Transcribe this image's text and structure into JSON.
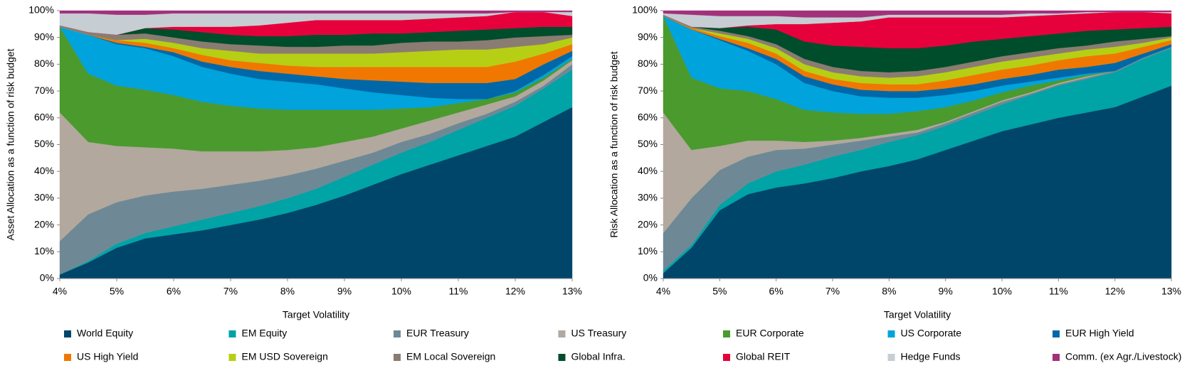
{
  "chart_data": [
    {
      "type": "area",
      "stacked": true,
      "y_label": "Asset Allocation as a function of risk budget",
      "x_label": "Target Volatility",
      "x": [
        4,
        4.5,
        5,
        5.5,
        6,
        6.5,
        7,
        7.5,
        8,
        8.5,
        9,
        9.5,
        10,
        10.5,
        11,
        11.5,
        12,
        12.5,
        13
      ],
      "xlim": [
        4,
        13
      ],
      "ylim": [
        0,
        100
      ],
      "xticks": [
        {
          "value": 4,
          "label": "4%"
        },
        {
          "value": 5,
          "label": "5%"
        },
        {
          "value": 6,
          "label": "6%"
        },
        {
          "value": 7,
          "label": "7%"
        },
        {
          "value": 8,
          "label": "8%"
        },
        {
          "value": 9,
          "label": "9%"
        },
        {
          "value": 10,
          "label": "10%"
        },
        {
          "value": 11,
          "label": "11%"
        },
        {
          "value": 12,
          "label": "12%"
        },
        {
          "value": 13,
          "label": "13%"
        }
      ],
      "yticks": [
        {
          "value": 0,
          "label": "0%"
        },
        {
          "value": 10,
          "label": "10%"
        },
        {
          "value": 20,
          "label": "20%"
        },
        {
          "value": 30,
          "label": "30%"
        },
        {
          "value": 40,
          "label": "40%"
        },
        {
          "value": 50,
          "label": "50%"
        },
        {
          "value": 60,
          "label": "60%"
        },
        {
          "value": 70,
          "label": "70%"
        },
        {
          "value": 80,
          "label": "80%"
        },
        {
          "value": 90,
          "label": "90%"
        },
        {
          "value": 100,
          "label": "100%"
        }
      ],
      "series": [
        {
          "name": "World Equity",
          "color": "#00466a",
          "values": [
            1.5,
            6,
            11.5,
            15,
            16.5,
            18,
            20,
            22,
            24.5,
            27.5,
            31,
            35,
            39,
            42.5,
            46,
            49.5,
            53,
            58.5,
            64
          ]
        },
        {
          "name": "EM Equity",
          "color": "#00a3a6",
          "values": [
            0,
            0.5,
            1.5,
            2,
            3,
            4,
            4.5,
            5,
            5.5,
            6,
            7,
            7.5,
            8,
            8.5,
            9.5,
            10.5,
            11.5,
            12.5,
            14
          ]
        },
        {
          "name": "EUR Treasury",
          "color": "#6e8995",
          "values": [
            12.5,
            17.5,
            15.5,
            14,
            13,
            11.5,
            10.5,
            9.5,
            8.5,
            7.5,
            6,
            4.5,
            4,
            3,
            2.5,
            1.5,
            1.5,
            1,
            2
          ]
        },
        {
          "name": "US Treasury",
          "color": "#b2a89d",
          "values": [
            48,
            27,
            21,
            18,
            16,
            14,
            12.5,
            11,
            9.5,
            8,
            7,
            6,
            5,
            5,
            4,
            3.5,
            2,
            2,
            1.5
          ]
        },
        {
          "name": "EUR Corporate",
          "color": "#4a9a2e",
          "values": [
            32,
            25.5,
            22.5,
            21.5,
            20,
            18.5,
            17,
            16,
            15,
            14,
            12,
            10,
            7.5,
            5,
            3.5,
            2,
            1.5,
            1,
            0.5
          ]
        },
        {
          "name": "US Corporate",
          "color": "#00a3dc",
          "values": [
            0,
            14.5,
            15.5,
            15.5,
            14.5,
            13,
            12,
            11,
            10.5,
            9.5,
            8,
            6.5,
            5,
            3.5,
            1.5,
            0,
            0.5,
            1,
            1
          ]
        },
        {
          "name": "EUR High Yield",
          "color": "#0068a8",
          "values": [
            0,
            0,
            0.5,
            0.5,
            1.5,
            2,
            2.5,
            3,
            3,
            3,
            3.5,
            4.5,
            5,
            5.5,
            6,
            6,
            4.5,
            4,
            2
          ]
        },
        {
          "name": "US High Yield",
          "color": "#f07800",
          "values": [
            0,
            0,
            1,
            1.5,
            1.5,
            2.5,
            2.5,
            3,
            3,
            3.5,
            4.5,
            5,
            5.5,
            6,
            6,
            6,
            6.5,
            4,
            2.5
          ]
        },
        {
          "name": "EM USD Sovereign",
          "color": "#b6cf14",
          "values": [
            0,
            0,
            0,
            1.5,
            2,
            2.5,
            3.5,
            3.5,
            4.5,
            5,
            5,
            5,
            5.5,
            6,
            6.5,
            6.5,
            5.5,
            3.5,
            2.5
          ]
        },
        {
          "name": "EM Local Sovereign",
          "color": "#8a7c72",
          "values": [
            0.5,
            1,
            2,
            2,
            2,
            2.5,
            2.5,
            3,
            2.5,
            2.5,
            3,
            3,
            3.5,
            3.5,
            3,
            3.5,
            3.5,
            3,
            1
          ]
        },
        {
          "name": "Global Infra.",
          "color": "#004d2b",
          "values": [
            0,
            0,
            0,
            2,
            3,
            3.5,
            3.5,
            3.5,
            4,
            4.5,
            4,
            4.5,
            3.5,
            3.5,
            4,
            4,
            3.5,
            3.5,
            3
          ]
        },
        {
          "name": "Global REIT",
          "color": "#e6003c",
          "values": [
            0,
            0,
            0,
            0,
            1,
            2,
            3,
            4,
            5,
            5.5,
            5.5,
            5,
            5,
            5,
            5,
            5,
            6,
            5.5,
            4
          ]
        },
        {
          "name": "Hedge Funds",
          "color": "#c6cdd3",
          "values": [
            4.5,
            7,
            7.5,
            5,
            5,
            5,
            5,
            4.5,
            3.5,
            2.5,
            2.5,
            2.5,
            2.5,
            2,
            1.5,
            1,
            0,
            0,
            1.5
          ]
        },
        {
          "name": "Comm. (ex Agr./Livestock)",
          "color": "#a2317b",
          "values": [
            1,
            1,
            1.5,
            1.5,
            1,
            1,
            1,
            1,
            1,
            1,
            1,
            1,
            1,
            1,
            1,
            1,
            0.5,
            0.5,
            0.5
          ]
        }
      ]
    },
    {
      "type": "area",
      "stacked": true,
      "y_label": "Risk Allocation as a function of risk budget",
      "x_label": "Target Volatility",
      "x": [
        4,
        4.5,
        5,
        5.5,
        6,
        6.5,
        7,
        7.5,
        8,
        8.5,
        9,
        9.5,
        10,
        10.5,
        11,
        11.5,
        12,
        12.5,
        13
      ],
      "xlim": [
        4,
        13
      ],
      "ylim": [
        0,
        100
      ],
      "xticks": [
        {
          "value": 4,
          "label": "4%"
        },
        {
          "value": 5,
          "label": "5%"
        },
        {
          "value": 6,
          "label": "6%"
        },
        {
          "value": 7,
          "label": "7%"
        },
        {
          "value": 8,
          "label": "8%"
        },
        {
          "value": 9,
          "label": "9%"
        },
        {
          "value": 10,
          "label": "10%"
        },
        {
          "value": 11,
          "label": "11%"
        },
        {
          "value": 12,
          "label": "12%"
        },
        {
          "value": 13,
          "label": "13%"
        }
      ],
      "yticks": [
        {
          "value": 0,
          "label": "0%"
        },
        {
          "value": 10,
          "label": "10%"
        },
        {
          "value": 20,
          "label": "20%"
        },
        {
          "value": 30,
          "label": "30%"
        },
        {
          "value": 40,
          "label": "40%"
        },
        {
          "value": 50,
          "label": "50%"
        },
        {
          "value": 60,
          "label": "60%"
        },
        {
          "value": 70,
          "label": "70%"
        },
        {
          "value": 80,
          "label": "80%"
        },
        {
          "value": 90,
          "label": "90%"
        },
        {
          "value": 100,
          "label": "100%"
        }
      ],
      "series": [
        {
          "name": "World Equity",
          "color": "#00466a",
          "values": [
            2,
            11.5,
            25.5,
            31.5,
            34,
            35.5,
            37.5,
            40,
            42,
            44.5,
            48,
            51.5,
            55,
            57.5,
            60,
            62,
            64,
            68,
            72
          ]
        },
        {
          "name": "EM Equity",
          "color": "#00a3a6",
          "values": [
            1,
            1,
            2,
            4,
            6,
            7,
            8,
            8,
            9,
            9,
            9,
            9.5,
            10,
            11,
            12,
            12.5,
            13,
            14,
            14
          ]
        },
        {
          "name": "EUR Treasury",
          "color": "#6e8995",
          "values": [
            14,
            17.5,
            13,
            10,
            8,
            6,
            4.5,
            3.5,
            2,
            1,
            1,
            1,
            1,
            0.5,
            0.5,
            0.5,
            0.5,
            0.5,
            0.5
          ]
        },
        {
          "name": "US Treasury",
          "color": "#b2a89d",
          "values": [
            45,
            18,
            9,
            6,
            3.5,
            2.5,
            1.5,
            1,
            1,
            1,
            0.5,
            0.5,
            0.5,
            0.5,
            0.5,
            0.5,
            0,
            0,
            0
          ]
        },
        {
          "name": "EUR Corporate",
          "color": "#4a9a2e",
          "values": [
            36,
            27,
            21.5,
            18.5,
            15.5,
            12,
            10.5,
            9,
            7.5,
            7,
            5.5,
            4,
            3,
            2.5,
            1,
            0.5,
            0,
            0,
            0
          ]
        },
        {
          "name": "US Corporate",
          "color": "#00a3dc",
          "values": [
            0,
            18,
            18,
            15,
            13,
            10,
            8,
            6.5,
            6,
            5,
            4.5,
            3.5,
            2.5,
            1.5,
            1,
            0.5,
            0,
            0,
            0
          ]
        },
        {
          "name": "EUR High Yield",
          "color": "#0068a8",
          "values": [
            0,
            0,
            0.5,
            1,
            2,
            2.5,
            2.5,
            2.5,
            2.5,
            2.5,
            2.5,
            2.5,
            2.5,
            2.5,
            3,
            2.5,
            3,
            1.5,
            1
          ]
        },
        {
          "name": "US High Yield",
          "color": "#f07800",
          "values": [
            0,
            0.5,
            1,
            2,
            2,
            2,
            2,
            2.5,
            2.5,
            2.5,
            3,
            3.5,
            3.5,
            3.5,
            3.5,
            4,
            3.5,
            2.5,
            1.5
          ]
        },
        {
          "name": "EM USD Sovereign",
          "color": "#b6cf14",
          "values": [
            0,
            0,
            1,
            1.5,
            2,
            2.5,
            2.5,
            2.5,
            2.5,
            3,
            3,
            3,
            3,
            3,
            2.5,
            2.5,
            2.5,
            1.5,
            1
          ]
        },
        {
          "name": "EM Local Sovereign",
          "color": "#8a7c72",
          "values": [
            0.5,
            0.5,
            1,
            1,
            1.5,
            2,
            2,
            2,
            2,
            2,
            2,
            2,
            2,
            2,
            2,
            1.5,
            2,
            1.5,
            0.5
          ]
        },
        {
          "name": "Global Infra.",
          "color": "#004d2b",
          "values": [
            0,
            0,
            1,
            3.5,
            5.5,
            6.5,
            8,
            9,
            9,
            8.5,
            8,
            7.5,
            6.5,
            6,
            5.5,
            5.5,
            4.5,
            4,
            3.5
          ]
        },
        {
          "name": "Global REIT",
          "color": "#e6003c",
          "values": [
            0,
            0,
            0,
            0.5,
            2,
            6.5,
            8.5,
            9.5,
            11.5,
            11.5,
            10.5,
            9,
            8,
            7.5,
            7,
            6.5,
            6.5,
            6,
            5
          ]
        },
        {
          "name": "Hedge Funds",
          "color": "#c6cdd3",
          "values": [
            0.5,
            4.5,
            4.5,
            3.5,
            3,
            2.5,
            2,
            1.5,
            1,
            1,
            1,
            1,
            1,
            1,
            0.5,
            0.5,
            0,
            0,
            0.5
          ]
        },
        {
          "name": "Comm. (ex Agr./Livestock)",
          "color": "#a2317b",
          "values": [
            1,
            1.5,
            2,
            2,
            2,
            2.5,
            2.5,
            2.5,
            1.5,
            1.5,
            1.5,
            1.5,
            1.5,
            1,
            1,
            0.5,
            0.5,
            0.5,
            0.5
          ]
        }
      ]
    }
  ]
}
